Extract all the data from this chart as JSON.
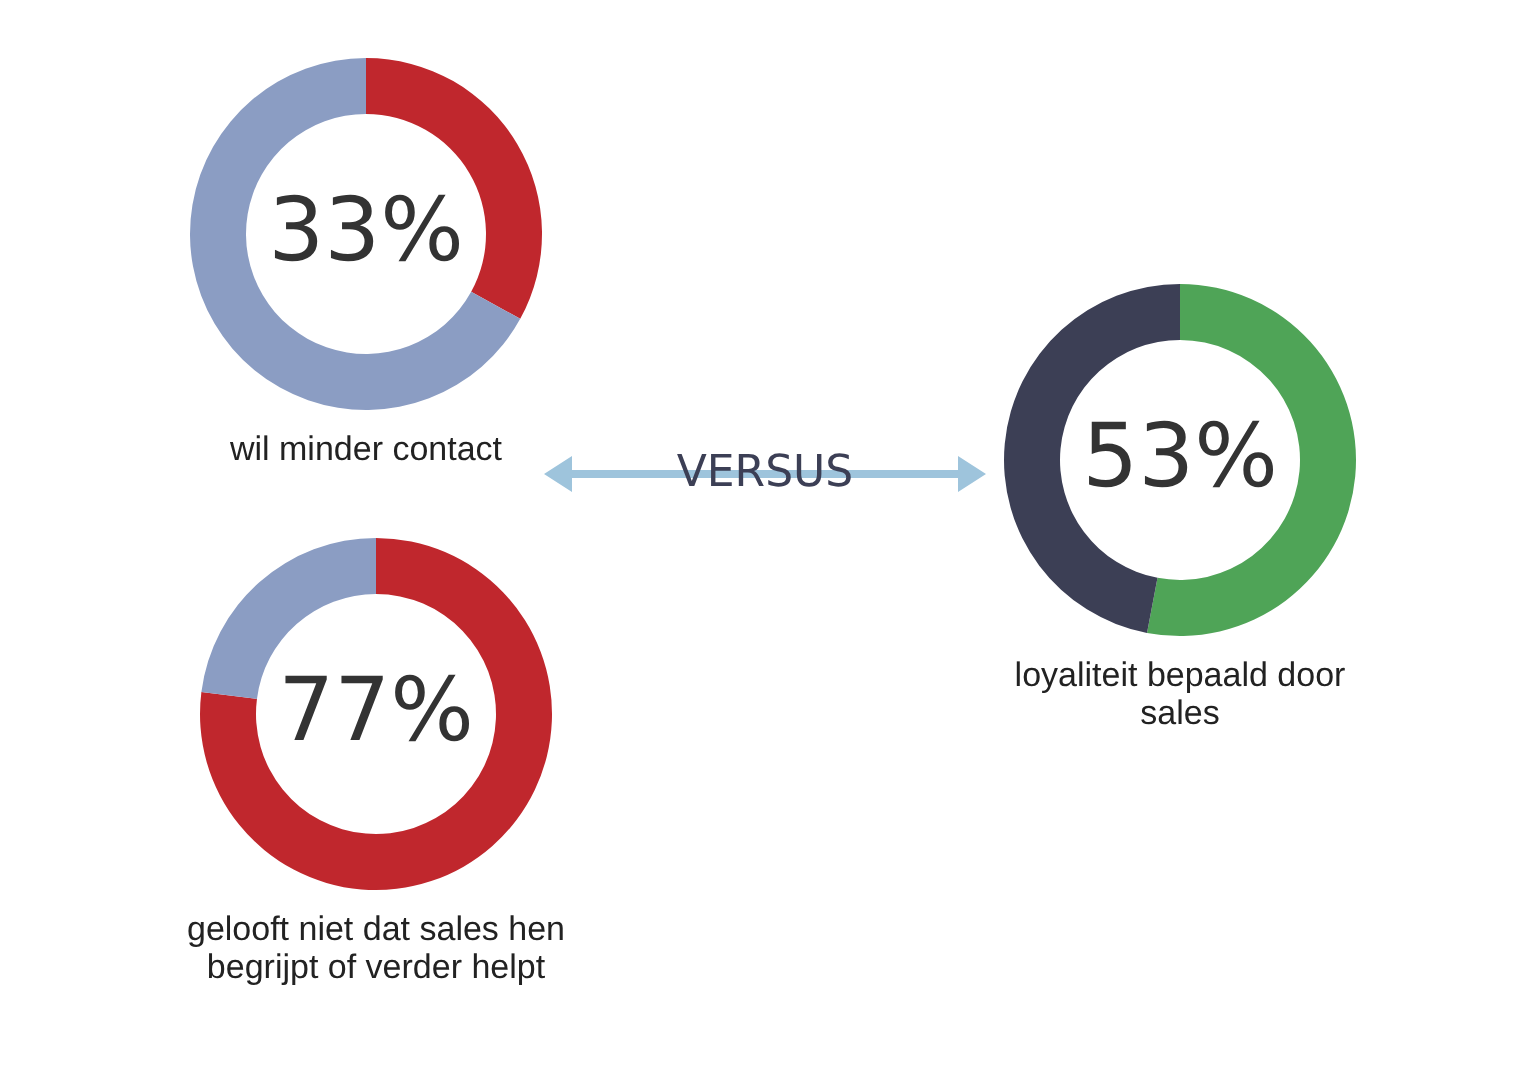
{
  "chart_data": [
    {
      "type": "donut",
      "title": "wil minder contact",
      "categories": [
        null,
        null
      ],
      "values": [
        33,
        67
      ],
      "colors": [
        "#c0272d",
        "#8b9dc3"
      ],
      "value_labels": [
        "33%",
        null
      ]
    },
    {
      "type": "donut",
      "title": "gelooft niet dat sales hen begrijpt of verder helpt",
      "categories": [
        null,
        null
      ],
      "values": [
        77,
        23
      ],
      "colors": [
        "#c0272d",
        "#8b9dc3"
      ],
      "value_labels": [
        "77%",
        null
      ]
    },
    {
      "type": "other",
      "title": "VERSUS"
    },
    {
      "type": "donut",
      "title": "loyaliteit bepaald door sales",
      "categories": [
        null,
        null
      ],
      "values": [
        53,
        47
      ],
      "colors": [
        "#4fa457",
        "#3c3f55"
      ],
      "value_labels": [
        "53%",
        null
      ]
    }
  ]
}
